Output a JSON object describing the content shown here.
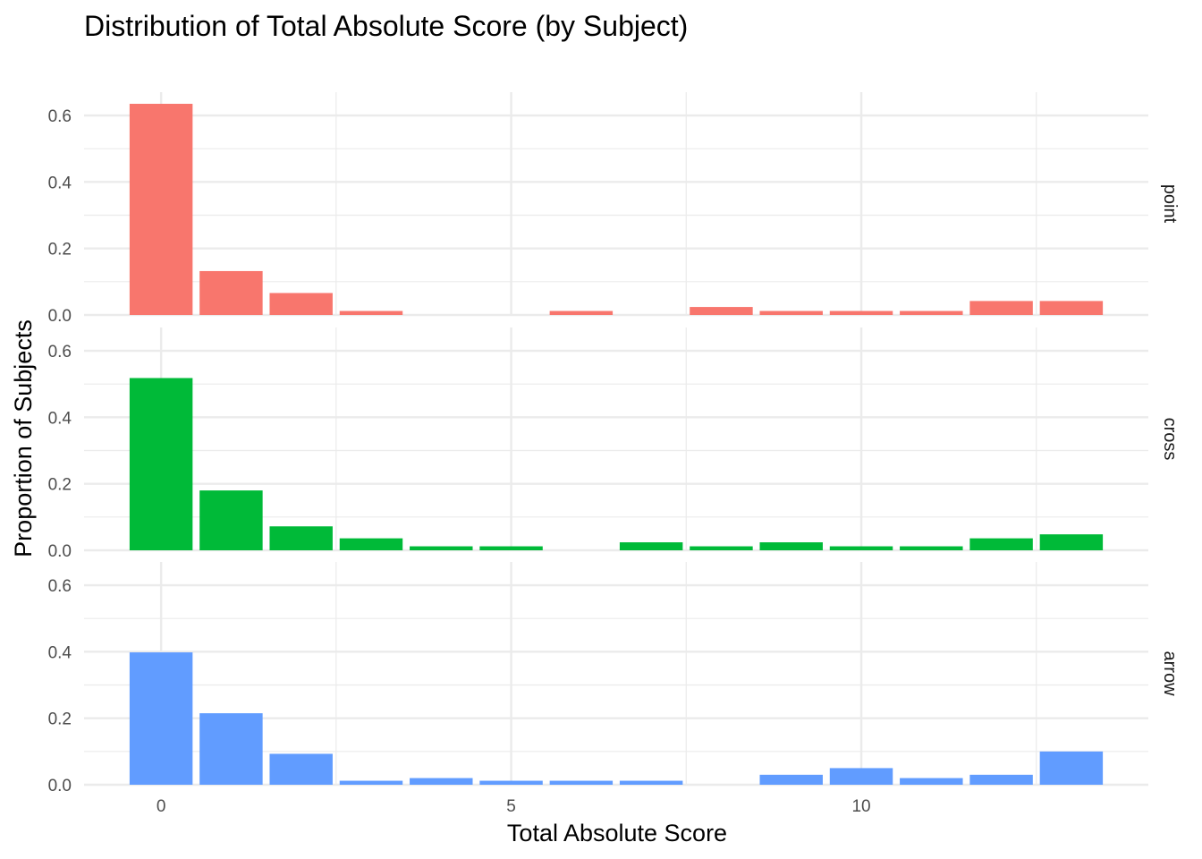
{
  "chart_data": {
    "type": "bar",
    "title": "Distribution of Total Absolute Score (by Subject)",
    "xlabel": "Total Absolute Score",
    "ylabel": "Proportion of Subjects",
    "x": [
      0,
      1,
      2,
      3,
      4,
      5,
      6,
      7,
      8,
      9,
      10,
      11,
      12,
      13
    ],
    "x_ticks": [
      0,
      5,
      10
    ],
    "y_ticks": [
      0.0,
      0.2,
      0.4,
      0.6
    ],
    "y_tick_labels": [
      "0.0",
      "0.2",
      "0.4",
      "0.6"
    ],
    "xlim": [
      -1.1,
      14.1
    ],
    "ylim": [
      0,
      0.67
    ],
    "grid": true,
    "facets": [
      {
        "label": "point",
        "color": "#F8766D",
        "values": [
          0.635,
          0.132,
          0.066,
          0.012,
          0,
          0,
          0.012,
          0,
          0.024,
          0.012,
          0.012,
          0.012,
          0.042,
          0.042
        ]
      },
      {
        "label": "cross",
        "color": "#00BA38",
        "values": [
          0.518,
          0.18,
          0.072,
          0.036,
          0.012,
          0.012,
          0,
          0.024,
          0.012,
          0.024,
          0.012,
          0.012,
          0.036,
          0.048
        ]
      },
      {
        "label": "arrow",
        "color": "#619CFF",
        "values": [
          0.398,
          0.215,
          0.093,
          0.012,
          0.02,
          0.012,
          0.012,
          0.012,
          0,
          0.03,
          0.05,
          0.02,
          0.03,
          0.1
        ]
      }
    ]
  }
}
